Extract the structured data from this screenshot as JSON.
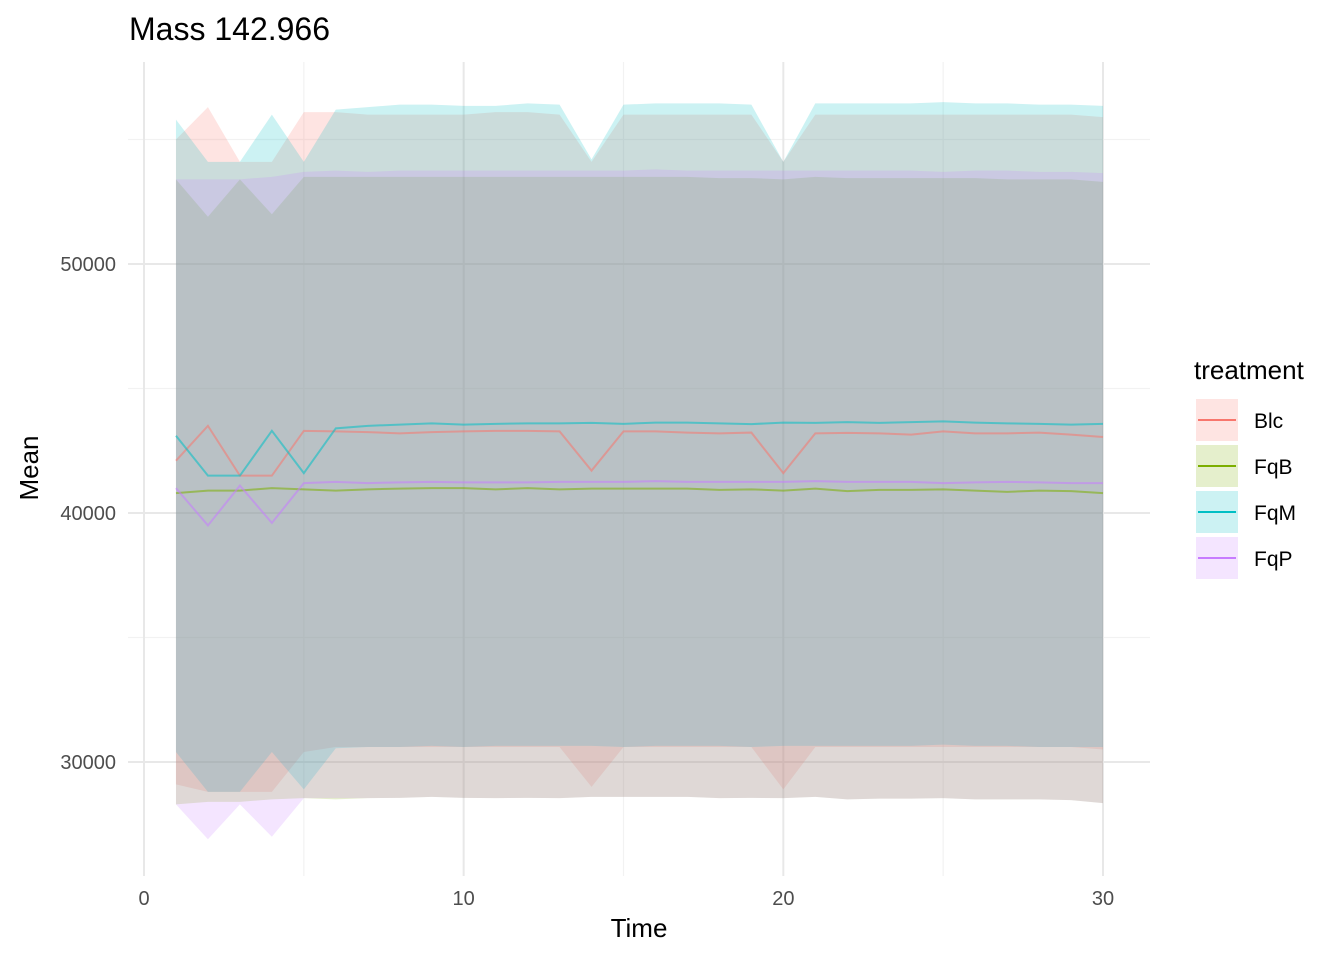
{
  "chart_data": {
    "type": "line",
    "title": "Mass 142.966",
    "xlabel": "Time",
    "ylabel": "Mean",
    "xlim": [
      0,
      30
    ],
    "ylim": [
      25000,
      57000
    ],
    "x_ticks": [
      0,
      10,
      20,
      30
    ],
    "y_ticks": [
      30000,
      40000,
      50000
    ],
    "x_tick_labels": [
      "0",
      "10",
      "20",
      "30"
    ],
    "y_tick_labels": [
      "30000",
      "40000",
      "50000"
    ],
    "grid": true,
    "legend": {
      "title": "treatment",
      "position": "right"
    },
    "x": [
      1,
      2,
      3,
      4,
      5,
      6,
      7,
      8,
      9,
      10,
      11,
      12,
      13,
      14,
      15,
      16,
      17,
      18,
      19,
      20,
      21,
      22,
      23,
      24,
      25,
      26,
      27,
      28,
      29,
      30
    ],
    "series": [
      {
        "name": "Blc",
        "color": "#F8766D",
        "mean": [
          42100,
          43500,
          41500,
          41500,
          43300,
          43280,
          43250,
          43200,
          43250,
          43280,
          43300,
          43300,
          43280,
          41700,
          43280,
          43280,
          43230,
          43200,
          43230,
          41600,
          43200,
          43220,
          43200,
          43150,
          43280,
          43200,
          43200,
          43230,
          43150,
          43050
        ],
        "lower": [
          29100,
          28800,
          28800,
          28800,
          30400,
          30600,
          30600,
          30600,
          30600,
          30600,
          30600,
          30600,
          30600,
          29000,
          30600,
          30600,
          30600,
          30600,
          30600,
          28900,
          30600,
          30600,
          30600,
          30600,
          30600,
          30600,
          30600,
          30600,
          30600,
          30500
        ],
        "upper": [
          55000,
          56300,
          54100,
          54100,
          56100,
          56100,
          56000,
          56000,
          56000,
          56000,
          56100,
          56100,
          56000,
          54100,
          56000,
          56000,
          56000,
          56000,
          56000,
          54100,
          56000,
          56000,
          56000,
          56000,
          56000,
          56000,
          56000,
          56000,
          56000,
          55900
        ]
      },
      {
        "name": "FqB",
        "color": "#7CAE00",
        "mean": [
          40800,
          40900,
          40900,
          41000,
          40950,
          40900,
          40950,
          40980,
          41000,
          41000,
          40950,
          41000,
          40950,
          40980,
          40980,
          40980,
          40980,
          40930,
          40950,
          40900,
          40980,
          40880,
          40930,
          40930,
          40950,
          40900,
          40850,
          40900,
          40880,
          40800
        ],
        "lower": [
          28300,
          28400,
          28400,
          28500,
          28550,
          28500,
          28550,
          28560,
          28600,
          28560,
          28550,
          28560,
          28550,
          28600,
          28600,
          28600,
          28600,
          28550,
          28560,
          28550,
          28600,
          28500,
          28530,
          28530,
          28550,
          28500,
          28500,
          28500,
          28470,
          28350
        ],
        "upper": [
          53400,
          51900,
          53400,
          52000,
          53500,
          53500,
          53500,
          53500,
          53500,
          53500,
          53500,
          53500,
          53500,
          53500,
          53500,
          53500,
          53500,
          53450,
          53450,
          53400,
          53500,
          53450,
          53450,
          53450,
          53450,
          53450,
          53400,
          53400,
          53400,
          53300
        ]
      },
      {
        "name": "FqM",
        "color": "#00BFC4",
        "mean": [
          43100,
          41500,
          41500,
          43300,
          41600,
          43400,
          43500,
          43550,
          43600,
          43550,
          43580,
          43600,
          43600,
          43620,
          43580,
          43630,
          43630,
          43600,
          43570,
          43630,
          43620,
          43650,
          43620,
          43650,
          43680,
          43630,
          43600,
          43580,
          43550,
          43580
        ],
        "lower": [
          30400,
          28800,
          28800,
          30400,
          28900,
          30550,
          30600,
          30600,
          30650,
          30600,
          30650,
          30650,
          30650,
          30650,
          30600,
          30650,
          30650,
          30650,
          30600,
          30650,
          30650,
          30650,
          30650,
          30650,
          30700,
          30650,
          30650,
          30600,
          30600,
          30600
        ],
        "upper": [
          55800,
          54100,
          54100,
          56000,
          54100,
          56200,
          56300,
          56400,
          56400,
          56350,
          56350,
          56450,
          56400,
          54200,
          56400,
          56450,
          56450,
          56450,
          56400,
          54100,
          56450,
          56450,
          56450,
          56450,
          56500,
          56450,
          56450,
          56400,
          56400,
          56350
        ]
      },
      {
        "name": "FqP",
        "color": "#C77CFF",
        "mean": [
          41000,
          39500,
          41100,
          39600,
          41200,
          41250,
          41200,
          41230,
          41250,
          41230,
          41230,
          41230,
          41250,
          41250,
          41250,
          41280,
          41250,
          41250,
          41250,
          41250,
          41280,
          41250,
          41250,
          41250,
          41200,
          41230,
          41250,
          41230,
          41200,
          41200
        ],
        "lower": [
          28300,
          26900,
          28300,
          27000,
          28550,
          28550,
          28550,
          28560,
          28600,
          28560,
          28550,
          28560,
          28550,
          28600,
          28600,
          28600,
          28600,
          28550,
          28560,
          28550,
          28600,
          28500,
          28530,
          28530,
          28550,
          28500,
          28500,
          28500,
          28470,
          28350
        ],
        "upper": [
          53400,
          53400,
          53400,
          53500,
          53700,
          53750,
          53700,
          53750,
          53750,
          53750,
          53750,
          53750,
          53750,
          53750,
          53750,
          53800,
          53750,
          53750,
          53750,
          53750,
          53750,
          53750,
          53750,
          53750,
          53700,
          53750,
          53750,
          53700,
          53700,
          53650
        ]
      }
    ]
  }
}
